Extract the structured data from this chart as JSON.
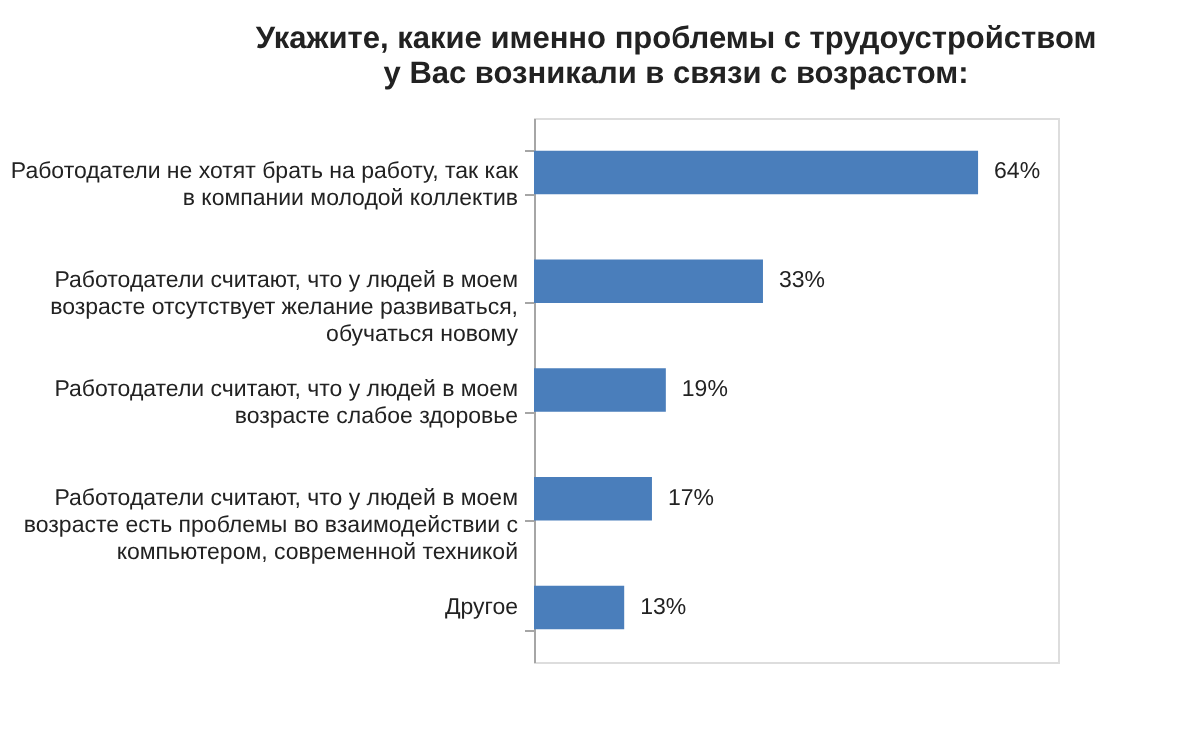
{
  "chart_data": {
    "type": "bar",
    "orientation": "horizontal",
    "title": "Укажите, какие именно проблемы с трудоустройством\nу Вас возникали в связи с возрастом:",
    "categories": [
      "Работодатели не хотят брать на работу, так как в компании молодой коллектив",
      "Работодатели считают, что у людей в моем возрасте отсутствует желание развиваться, обучаться новому",
      "Работодатели считают, что у людей в моем возрасте слабое здоровье",
      "Работодатели считают, что у людей в моем возрасте есть проблемы во взаимодействии с компьютером, современной техникой",
      "Другое"
    ],
    "values": [
      64,
      33,
      19,
      17,
      13
    ],
    "value_labels": [
      "64%",
      "33%",
      "19%",
      "17%",
      "13%"
    ],
    "color": "#4a7ebb",
    "tick_labels": false
  }
}
